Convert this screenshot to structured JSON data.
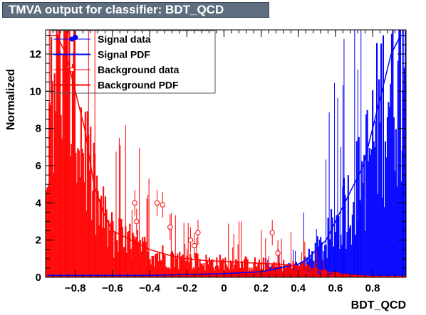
{
  "title": "TMVA output for classifier: BDT_QCD",
  "colors": {
    "signal": "#0000ff",
    "background": "#ff0000",
    "title_bg": "#5e6e7f"
  },
  "chart_data": {
    "type": "histogram",
    "xlabel": "BDT_QCD",
    "ylabel": "Normalized",
    "xlim": [
      -0.96,
      0.98
    ],
    "ylim": [
      0,
      13.3
    ],
    "xticks": [
      -0.8,
      -0.6,
      -0.4,
      -0.2,
      0,
      0.2,
      0.4,
      0.6,
      0.8
    ],
    "xtick_labels": [
      "−0.8",
      "−0.6",
      "−0.4",
      "−0.2",
      "0",
      "0.2",
      "0.4",
      "0.6",
      "0.8"
    ],
    "yticks": [
      0,
      2,
      4,
      6,
      8,
      10,
      12
    ],
    "ytick_labels": [
      "0",
      "2",
      "4",
      "6",
      "8",
      "10",
      "12"
    ],
    "grid": false,
    "legend_position": "top-left",
    "legend": [
      {
        "label": "Signal data",
        "style": "marker-filled",
        "series": "signal"
      },
      {
        "label": "Signal PDF",
        "style": "line",
        "series": "signal"
      },
      {
        "label": "Background data",
        "style": "marker-open",
        "series": "background"
      },
      {
        "label": "Background PDF",
        "style": "line",
        "series": "background"
      }
    ],
    "series": [
      {
        "name": "Signal PDF",
        "x": [
          -0.95,
          -0.8,
          -0.6,
          -0.4,
          -0.2,
          0,
          0.2,
          0.3,
          0.4,
          0.45,
          0.5,
          0.55,
          0.6,
          0.65,
          0.7,
          0.75,
          0.8,
          0.85,
          0.9,
          0.95,
          0.97
        ],
        "y": [
          0.1,
          0.1,
          0.1,
          0.1,
          0.15,
          0.2,
          0.3,
          0.5,
          0.7,
          1.0,
          1.5,
          2.0,
          3.0,
          4.0,
          5.0,
          6.0,
          8.0,
          10.0,
          12.0,
          13.0,
          13.0
        ]
      },
      {
        "name": "Background PDF",
        "x": [
          -0.95,
          -0.9,
          -0.85,
          -0.8,
          -0.75,
          -0.7,
          -0.65,
          -0.6,
          -0.5,
          -0.4,
          -0.3,
          -0.2,
          -0.1,
          0,
          0.1,
          0.2,
          0.3,
          0.4,
          0.5,
          0.6,
          0.7,
          0.8,
          0.9,
          0.97
        ],
        "y": [
          13.0,
          13.0,
          12.0,
          10.0,
          8.0,
          5.0,
          3.5,
          2.5,
          2.0,
          1.5,
          1.2,
          1.0,
          0.9,
          0.85,
          0.8,
          0.75,
          0.7,
          0.6,
          0.4,
          0.2,
          0.1,
          0.05,
          0.05,
          0.05
        ]
      },
      {
        "name": "Signal data",
        "x": [
          -0.8
        ],
        "y": [
          12.9
        ]
      },
      {
        "name": "Background data",
        "x": [
          -0.48,
          -0.47,
          -0.36,
          -0.33,
          -0.29,
          -0.18,
          -0.16,
          -0.14,
          0.26,
          0.29
        ],
        "y": [
          4.0,
          3.0,
          4.0,
          3.9,
          2.7,
          2.0,
          1.7,
          2.4,
          2.4,
          1.3
        ]
      }
    ]
  }
}
